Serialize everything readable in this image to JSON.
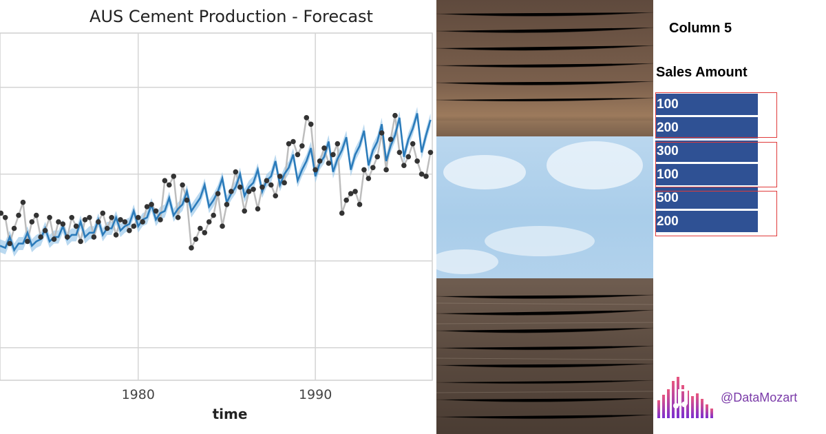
{
  "chart_data": {
    "type": "line",
    "title": "AUS Cement Production - Forecast",
    "xlabel": "time",
    "ylabel": "",
    "x_ticks": [
      1980,
      1990
    ],
    "xlim": [
      1972.2,
      1996.6
    ],
    "ylim": [
      0.55,
      2.15
    ],
    "y_gridlines": [
      0.7,
      1.1,
      1.5,
      1.9
    ],
    "grid": true,
    "series": [
      {
        "style": "points-connected",
        "color": "#bdbdbd",
        "point_color": "#333333",
        "x": [
          1972.25,
          1972.5,
          1972.75,
          1973.0,
          1973.25,
          1973.5,
          1973.75,
          1974.0,
          1974.25,
          1974.5,
          1974.75,
          1975.0,
          1975.25,
          1975.5,
          1975.75,
          1976.0,
          1976.25,
          1976.5,
          1976.75,
          1977.0,
          1977.25,
          1977.5,
          1977.75,
          1978.0,
          1978.25,
          1978.5,
          1978.75,
          1979.0,
          1979.25,
          1979.5,
          1979.75,
          1980.0,
          1980.25,
          1980.5,
          1980.75,
          1981.0,
          1981.25,
          1981.5,
          1981.75,
          1982.0,
          1982.25,
          1982.5,
          1982.75,
          1983.0,
          1983.25,
          1983.5,
          1983.75,
          1984.0,
          1984.25,
          1984.5,
          1984.75,
          1985.0,
          1985.25,
          1985.5,
          1985.75,
          1986.0,
          1986.25,
          1986.5,
          1986.75,
          1987.0,
          1987.25,
          1987.5,
          1987.75,
          1988.0,
          1988.25,
          1988.5,
          1988.75,
          1989.0,
          1989.25,
          1989.5,
          1989.75,
          1990.0,
          1990.25,
          1990.5,
          1990.75,
          1991.0,
          1991.25,
          1991.5,
          1991.75,
          1992.0,
          1992.25,
          1992.5,
          1992.75,
          1993.0,
          1993.25,
          1993.5,
          1993.75,
          1994.0,
          1994.25,
          1994.5,
          1994.75,
          1995.0,
          1995.25,
          1995.5,
          1995.75,
          1996.0,
          1996.25,
          1996.5
        ],
        "y": [
          1.32,
          1.3,
          1.18,
          1.25,
          1.31,
          1.37,
          1.19,
          1.28,
          1.31,
          1.21,
          1.24,
          1.3,
          1.2,
          1.28,
          1.27,
          1.21,
          1.3,
          1.26,
          1.19,
          1.29,
          1.3,
          1.21,
          1.28,
          1.32,
          1.25,
          1.3,
          1.22,
          1.29,
          1.28,
          1.24,
          1.26,
          1.3,
          1.28,
          1.35,
          1.36,
          1.33,
          1.29,
          1.47,
          1.45,
          1.49,
          1.3,
          1.45,
          1.38,
          1.16,
          1.2,
          1.25,
          1.23,
          1.28,
          1.31,
          1.41,
          1.26,
          1.36,
          1.42,
          1.51,
          1.44,
          1.33,
          1.42,
          1.43,
          1.34,
          1.44,
          1.47,
          1.45,
          1.4,
          1.49,
          1.46,
          1.64,
          1.65,
          1.59,
          1.63,
          1.76,
          1.73,
          1.52,
          1.56,
          1.62,
          1.55,
          1.59,
          1.64,
          1.32,
          1.38,
          1.41,
          1.42,
          1.36,
          1.52,
          1.48,
          1.53,
          1.58,
          1.69,
          1.52,
          1.66,
          1.77,
          1.6,
          1.54,
          1.58,
          1.64,
          1.56,
          1.5,
          1.49,
          1.6
        ]
      },
      {
        "style": "line",
        "color": "#2b7bba",
        "band_color": "#9cc9ea",
        "x": [
          1972.2,
          1972.5,
          1972.75,
          1973.0,
          1973.25,
          1973.5,
          1973.75,
          1974.0,
          1974.25,
          1974.5,
          1974.75,
          1975.0,
          1975.25,
          1975.5,
          1975.75,
          1976.0,
          1976.25,
          1976.5,
          1976.75,
          1977.0,
          1977.25,
          1977.5,
          1977.75,
          1978.0,
          1978.25,
          1978.5,
          1978.75,
          1979.0,
          1979.25,
          1979.5,
          1979.75,
          1980.0,
          1980.25,
          1980.5,
          1980.75,
          1981.0,
          1981.25,
          1981.5,
          1981.75,
          1982.0,
          1982.25,
          1982.5,
          1982.75,
          1983.0,
          1983.25,
          1983.5,
          1983.75,
          1984.0,
          1984.25,
          1984.5,
          1984.75,
          1985.0,
          1985.25,
          1985.5,
          1985.75,
          1986.0,
          1986.25,
          1986.5,
          1986.75,
          1987.0,
          1987.25,
          1987.5,
          1987.75,
          1988.0,
          1988.25,
          1988.5,
          1988.75,
          1989.0,
          1989.25,
          1989.5,
          1989.75,
          1990.0,
          1990.25,
          1990.5,
          1990.75,
          1991.0,
          1991.25,
          1991.5,
          1991.75,
          1992.0,
          1992.25,
          1992.5,
          1992.75,
          1993.0,
          1993.25,
          1993.5,
          1993.75,
          1994.0,
          1994.25,
          1994.5,
          1994.75,
          1995.0,
          1995.25,
          1995.5,
          1995.75,
          1996.0,
          1996.25,
          1996.5
        ],
        "y": [
          1.17,
          1.16,
          1.21,
          1.15,
          1.18,
          1.18,
          1.23,
          1.17,
          1.19,
          1.2,
          1.25,
          1.19,
          1.21,
          1.21,
          1.26,
          1.2,
          1.22,
          1.22,
          1.28,
          1.21,
          1.23,
          1.23,
          1.29,
          1.22,
          1.25,
          1.25,
          1.3,
          1.24,
          1.26,
          1.27,
          1.33,
          1.26,
          1.29,
          1.3,
          1.36,
          1.29,
          1.32,
          1.33,
          1.39,
          1.31,
          1.34,
          1.36,
          1.42,
          1.33,
          1.36,
          1.39,
          1.45,
          1.35,
          1.38,
          1.42,
          1.48,
          1.37,
          1.41,
          1.44,
          1.5,
          1.4,
          1.44,
          1.46,
          1.52,
          1.42,
          1.47,
          1.49,
          1.56,
          1.45,
          1.5,
          1.53,
          1.59,
          1.47,
          1.52,
          1.56,
          1.62,
          1.49,
          1.55,
          1.58,
          1.65,
          1.51,
          1.57,
          1.61,
          1.67,
          1.52,
          1.59,
          1.63,
          1.7,
          1.54,
          1.61,
          1.65,
          1.73,
          1.56,
          1.63,
          1.68,
          1.76,
          1.58,
          1.66,
          1.71,
          1.78,
          1.6,
          1.68,
          1.75
        ]
      }
    ]
  },
  "table": {
    "title": "Column 5",
    "header": "Sales Amount",
    "values": [
      "100",
      "200",
      "300",
      "100",
      "500",
      "200"
    ]
  },
  "brand": {
    "handle": "@DataMozart",
    "logo_icon": "music-bars-icon"
  }
}
